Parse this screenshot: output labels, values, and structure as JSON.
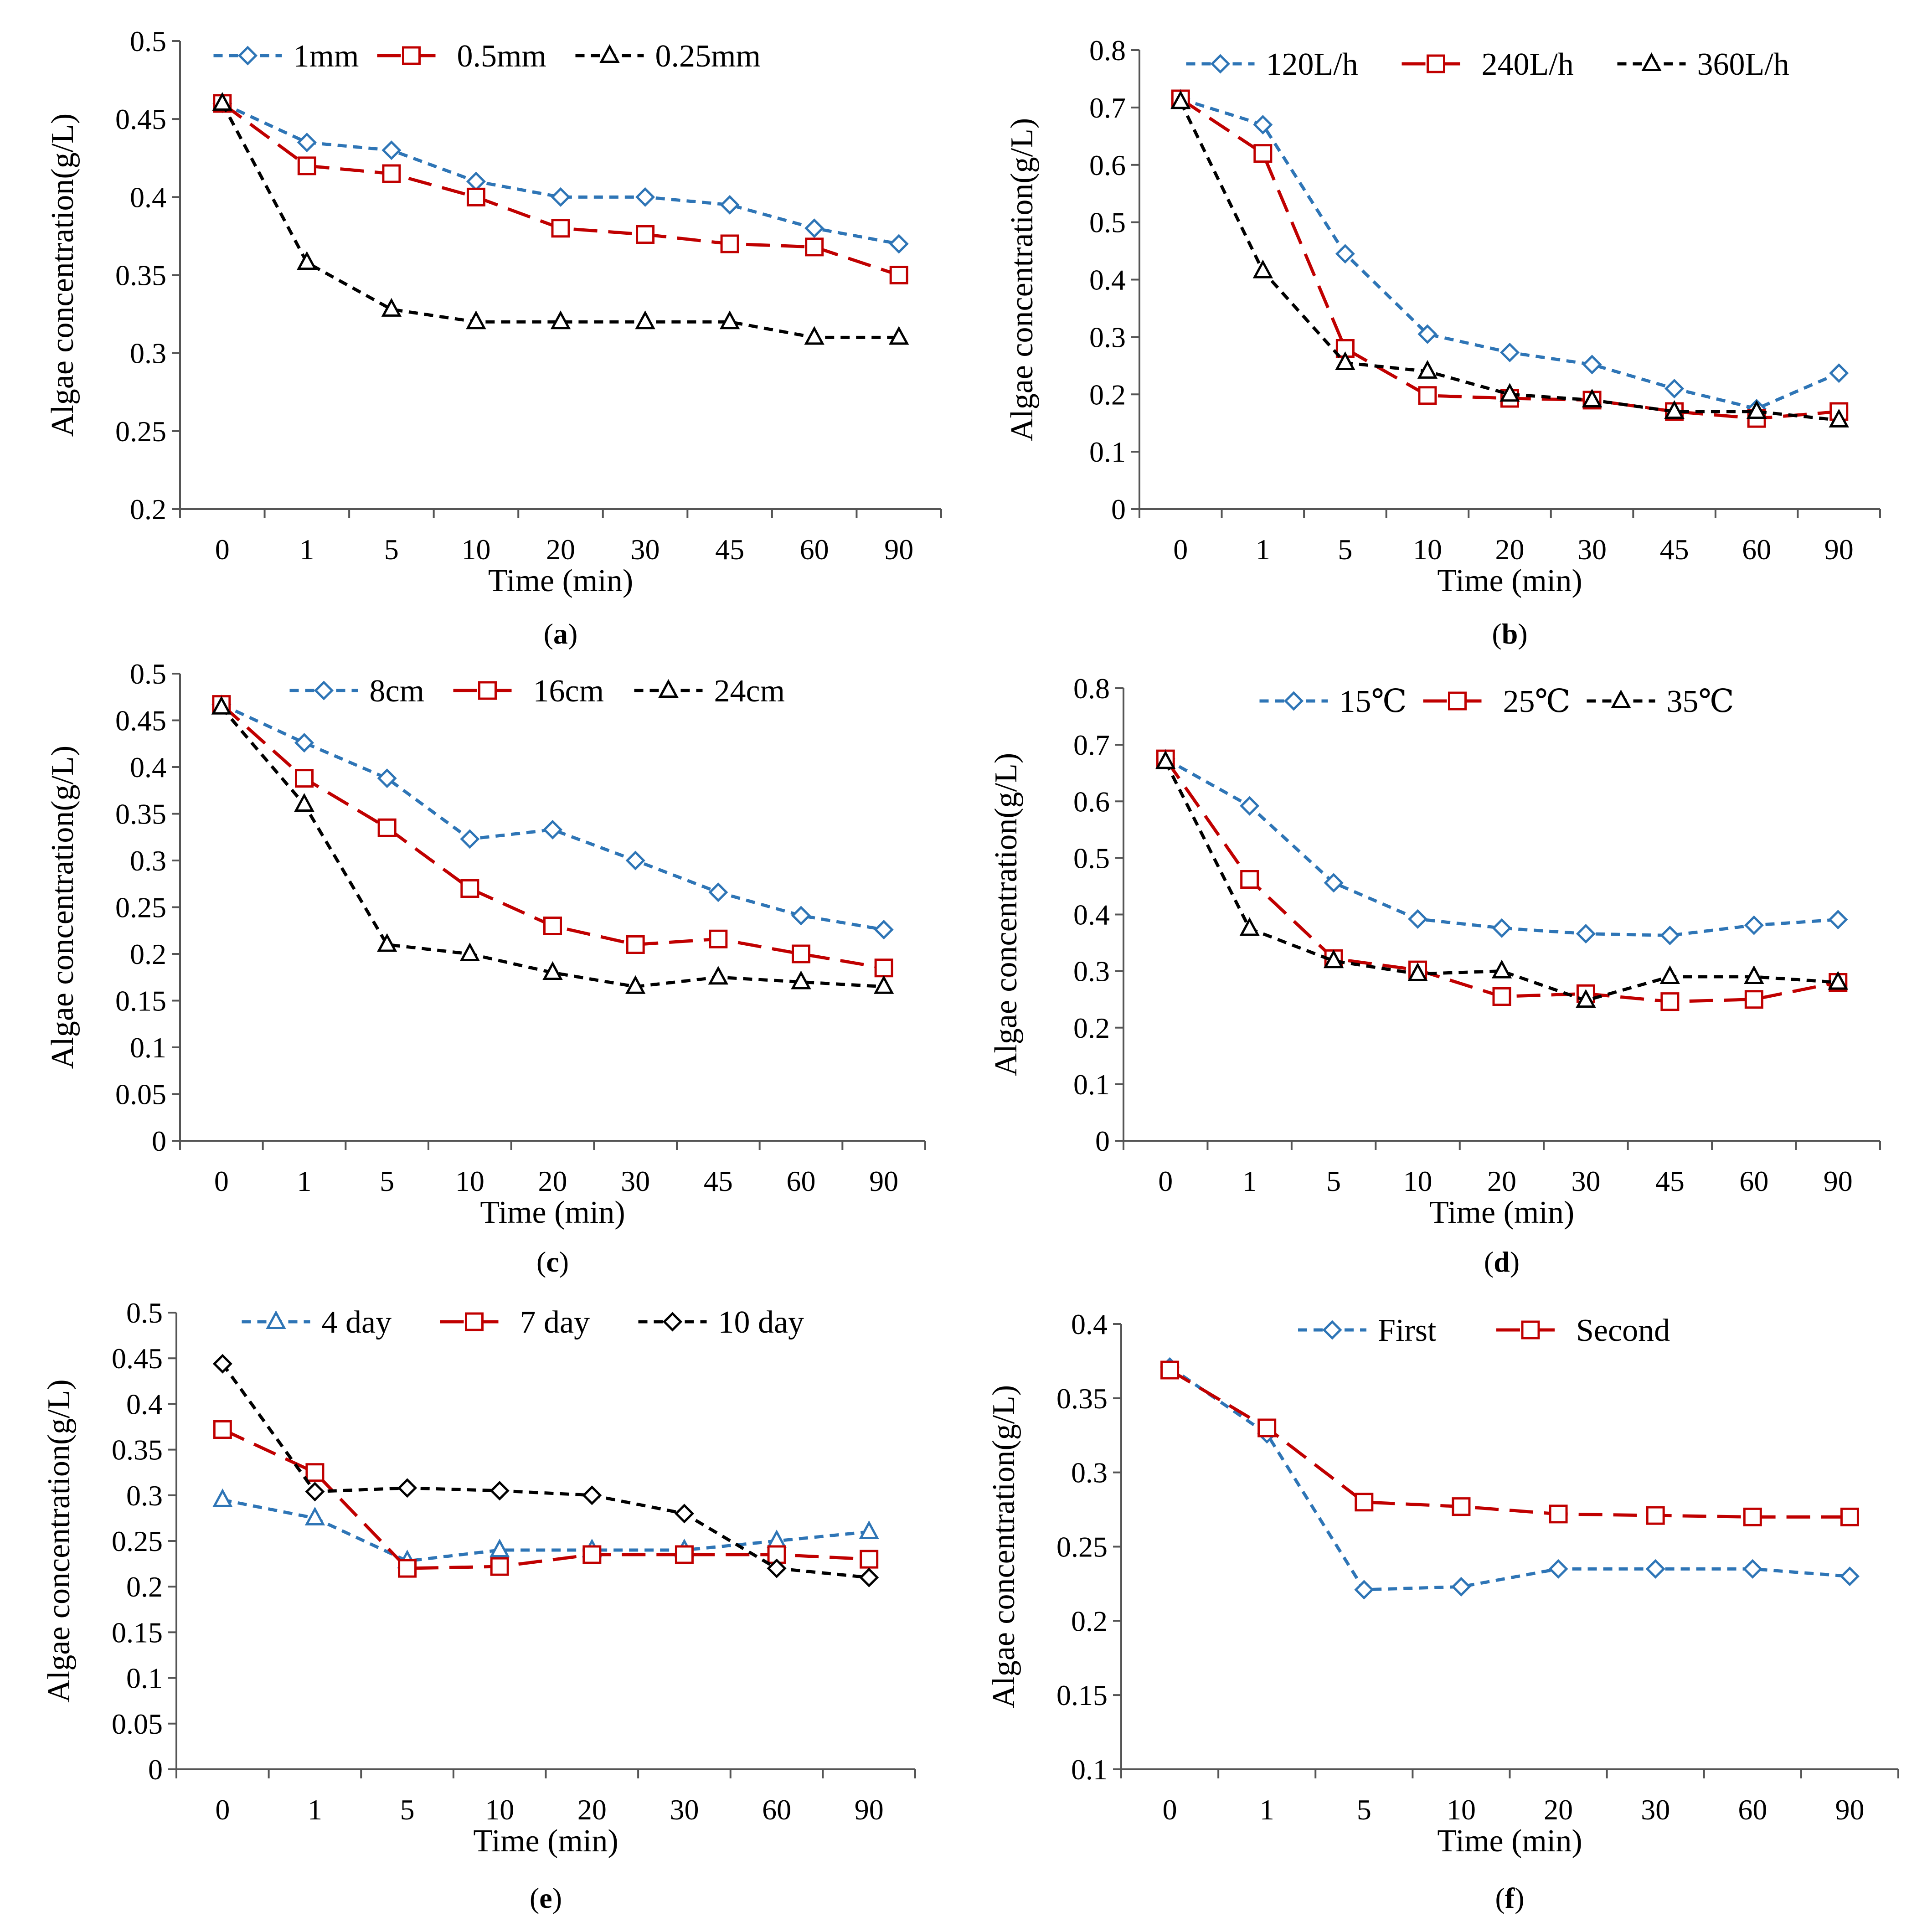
{
  "figure": {
    "panel_order": [
      "a",
      "b",
      "c",
      "d",
      "e",
      "f"
    ]
  },
  "chart_data": [
    {
      "panel": "a",
      "caption_prefix": "(",
      "caption_letter": "a",
      "caption_suffix": ")",
      "type": "line",
      "title": "",
      "xlabel": "Time (min)",
      "ylabel": "Algae concentration(g/L)",
      "categories": [
        "0",
        "1",
        "5",
        "10",
        "20",
        "30",
        "45",
        "60",
        "90"
      ],
      "ylim": [
        0.2,
        0.5
      ],
      "yticks": [
        0.2,
        0.25,
        0.3,
        0.35,
        0.4,
        0.45,
        0.5
      ],
      "ytick_labels": [
        "0.2",
        "0.25",
        "0.3",
        "0.35",
        "0.4",
        "0.45",
        "0.5"
      ],
      "grid": false,
      "legend_position": "top",
      "series": [
        {
          "name": "1mm",
          "color": "#2E75B6",
          "marker": "diamond",
          "dash": "short",
          "values": [
            0.46,
            0.435,
            0.43,
            0.41,
            0.4,
            0.4,
            0.395,
            0.38,
            0.37
          ]
        },
        {
          "name": "0.5mm",
          "color": "#C00000",
          "marker": "square",
          "dash": "long",
          "values": [
            0.46,
            0.42,
            0.415,
            0.4,
            0.38,
            0.376,
            0.37,
            0.368,
            0.35
          ]
        },
        {
          "name": "0.25mm",
          "color": "#000000",
          "marker": "triangle",
          "dash": "short",
          "values": [
            0.46,
            0.358,
            0.328,
            0.32,
            0.32,
            0.32,
            0.32,
            0.31,
            0.31
          ]
        }
      ]
    },
    {
      "panel": "b",
      "caption_prefix": "(",
      "caption_letter": "b",
      "caption_suffix": ")",
      "type": "line",
      "title": "",
      "xlabel": "Time (min)",
      "ylabel": "Algae concentration(g/L)",
      "categories": [
        "0",
        "1",
        "5",
        "10",
        "20",
        "30",
        "45",
        "60",
        "90"
      ],
      "ylim": [
        0,
        0.8
      ],
      "yticks": [
        0,
        0.1,
        0.2,
        0.3,
        0.4,
        0.5,
        0.6,
        0.7,
        0.8
      ],
      "ytick_labels": [
        "0",
        "0.1",
        "0.2",
        "0.3",
        "0.4",
        "0.5",
        "0.6",
        "0.7",
        "0.8"
      ],
      "grid": false,
      "legend_position": "top",
      "series": [
        {
          "name": "120L/h",
          "color": "#2E75B6",
          "marker": "diamond",
          "dash": "short",
          "values": [
            0.715,
            0.67,
            0.445,
            0.305,
            0.273,
            0.252,
            0.21,
            0.175,
            0.237
          ]
        },
        {
          "name": "240L/h",
          "color": "#C00000",
          "marker": "square",
          "dash": "long",
          "values": [
            0.715,
            0.62,
            0.28,
            0.198,
            0.193,
            0.19,
            0.17,
            0.158,
            0.17
          ]
        },
        {
          "name": "360L/h",
          "color": "#000000",
          "marker": "triangle",
          "dash": "short",
          "values": [
            0.71,
            0.415,
            0.255,
            0.24,
            0.2,
            0.19,
            0.17,
            0.17,
            0.155
          ]
        }
      ]
    },
    {
      "panel": "c",
      "caption_prefix": "(",
      "caption_letter": "c",
      "caption_suffix": ")",
      "type": "line",
      "title": "",
      "xlabel": "Time (min)",
      "ylabel": "Algae concentration(g/L)",
      "categories": [
        "0",
        "1",
        "5",
        "10",
        "20",
        "30",
        "45",
        "60",
        "90"
      ],
      "ylim": [
        0,
        0.5
      ],
      "yticks": [
        0,
        0.05,
        0.1,
        0.15,
        0.2,
        0.25,
        0.3,
        0.35,
        0.4,
        0.45,
        0.5
      ],
      "ytick_labels": [
        "0",
        "0.05",
        "0.1",
        "0.15",
        "0.2",
        "0.25",
        "0.3",
        "0.35",
        "0.4",
        "0.45",
        "0.5"
      ],
      "grid": false,
      "legend_position": "top",
      "series": [
        {
          "name": "8cm",
          "color": "#2E75B6",
          "marker": "diamond",
          "dash": "short",
          "values": [
            0.467,
            0.426,
            0.388,
            0.323,
            0.333,
            0.3,
            0.266,
            0.241,
            0.226
          ]
        },
        {
          "name": "16cm",
          "color": "#C00000",
          "marker": "square",
          "dash": "long",
          "values": [
            0.467,
            0.388,
            0.335,
            0.27,
            0.23,
            0.21,
            0.216,
            0.2,
            0.185
          ]
        },
        {
          "name": "24cm",
          "color": "#000000",
          "marker": "triangle",
          "dash": "short",
          "values": [
            0.464,
            0.36,
            0.21,
            0.2,
            0.18,
            0.165,
            0.175,
            0.17,
            0.165
          ]
        }
      ]
    },
    {
      "panel": "d",
      "caption_prefix": "(",
      "caption_letter": "d",
      "caption_suffix": ")",
      "type": "line",
      "title": "",
      "xlabel": "Time (min)",
      "ylabel": "Algae concentration(g/L)",
      "categories": [
        "0",
        "1",
        "5",
        "10",
        "20",
        "30",
        "45",
        "60",
        "90"
      ],
      "ylim": [
        0,
        0.8
      ],
      "yticks": [
        0,
        0.1,
        0.2,
        0.3,
        0.4,
        0.5,
        0.6,
        0.7,
        0.8
      ],
      "ytick_labels": [
        "0",
        "0.1",
        "0.2",
        "0.3",
        "0.4",
        "0.5",
        "0.6",
        "0.7",
        "0.8"
      ],
      "grid": false,
      "legend_position": "top",
      "series": [
        {
          "name": "15℃",
          "color": "#2E75B6",
          "marker": "diamond",
          "dash": "short",
          "values": [
            0.675,
            0.592,
            0.456,
            0.392,
            0.376,
            0.366,
            0.363,
            0.381,
            0.391
          ]
        },
        {
          "name": "25℃",
          "color": "#C00000",
          "marker": "square",
          "dash": "long",
          "values": [
            0.675,
            0.462,
            0.322,
            0.302,
            0.255,
            0.26,
            0.246,
            0.25,
            0.28
          ]
        },
        {
          "name": "35℃",
          "color": "#000000",
          "marker": "triangle",
          "dash": "short",
          "values": [
            0.67,
            0.375,
            0.318,
            0.295,
            0.3,
            0.248,
            0.29,
            0.29,
            0.28
          ]
        }
      ]
    },
    {
      "panel": "e",
      "caption_prefix": "(",
      "caption_letter": "e",
      "caption_suffix": ")",
      "type": "line",
      "title": "",
      "xlabel": "Time (min)",
      "ylabel": "Algae concentration(g/L)",
      "categories": [
        "0",
        "1",
        "5",
        "10",
        "20",
        "30",
        "60",
        "90"
      ],
      "ylim": [
        0,
        0.5
      ],
      "yticks": [
        0,
        0.05,
        0.1,
        0.15,
        0.2,
        0.25,
        0.3,
        0.35,
        0.4,
        0.45,
        0.5
      ],
      "ytick_labels": [
        "0",
        "0.05",
        "0.1",
        "0.15",
        "0.2",
        "0.25",
        "0.3",
        "0.35",
        "0.4",
        "0.45",
        "0.5"
      ],
      "grid": false,
      "legend_position": "top",
      "series": [
        {
          "name": "4 day",
          "color": "#2E75B6",
          "marker": "triangle",
          "dash": "short",
          "values": [
            0.295,
            0.275,
            0.228,
            0.24,
            0.24,
            0.24,
            0.25,
            0.26
          ]
        },
        {
          "name": "7 day",
          "color": "#C00000",
          "marker": "square",
          "dash": "long",
          "values": [
            0.372,
            0.325,
            0.22,
            0.222,
            0.235,
            0.235,
            0.235,
            0.23
          ]
        },
        {
          "name": "10 day",
          "color": "#000000",
          "marker": "diamond",
          "dash": "short",
          "values": [
            0.444,
            0.304,
            0.308,
            0.305,
            0.3,
            0.28,
            0.22,
            0.21
          ]
        }
      ]
    },
    {
      "panel": "f",
      "caption_prefix": "(",
      "caption_letter": "f",
      "caption_suffix": ")",
      "type": "line",
      "title": "",
      "xlabel": "Time (min)",
      "ylabel": "Algae concentration(g/L)",
      "categories": [
        "0",
        "1",
        "5",
        "10",
        "20",
        "30",
        "60",
        "90"
      ],
      "ylim": [
        0.1,
        0.4
      ],
      "yticks": [
        0.1,
        0.15,
        0.2,
        0.25,
        0.3,
        0.35,
        0.4
      ],
      "ytick_labels": [
        "0.1",
        "0.15",
        "0.2",
        "0.25",
        "0.3",
        "0.35",
        "0.4"
      ],
      "grid": false,
      "legend_position": "top",
      "series": [
        {
          "name": "First",
          "color": "#2E75B6",
          "marker": "diamond",
          "dash": "short",
          "values": [
            0.371,
            0.326,
            0.221,
            0.223,
            0.235,
            0.235,
            0.235,
            0.23
          ]
        },
        {
          "name": "Second",
          "color": "#C00000",
          "marker": "square",
          "dash": "long",
          "values": [
            0.369,
            0.33,
            0.28,
            0.277,
            0.272,
            0.271,
            0.27,
            0.27
          ]
        }
      ]
    }
  ]
}
